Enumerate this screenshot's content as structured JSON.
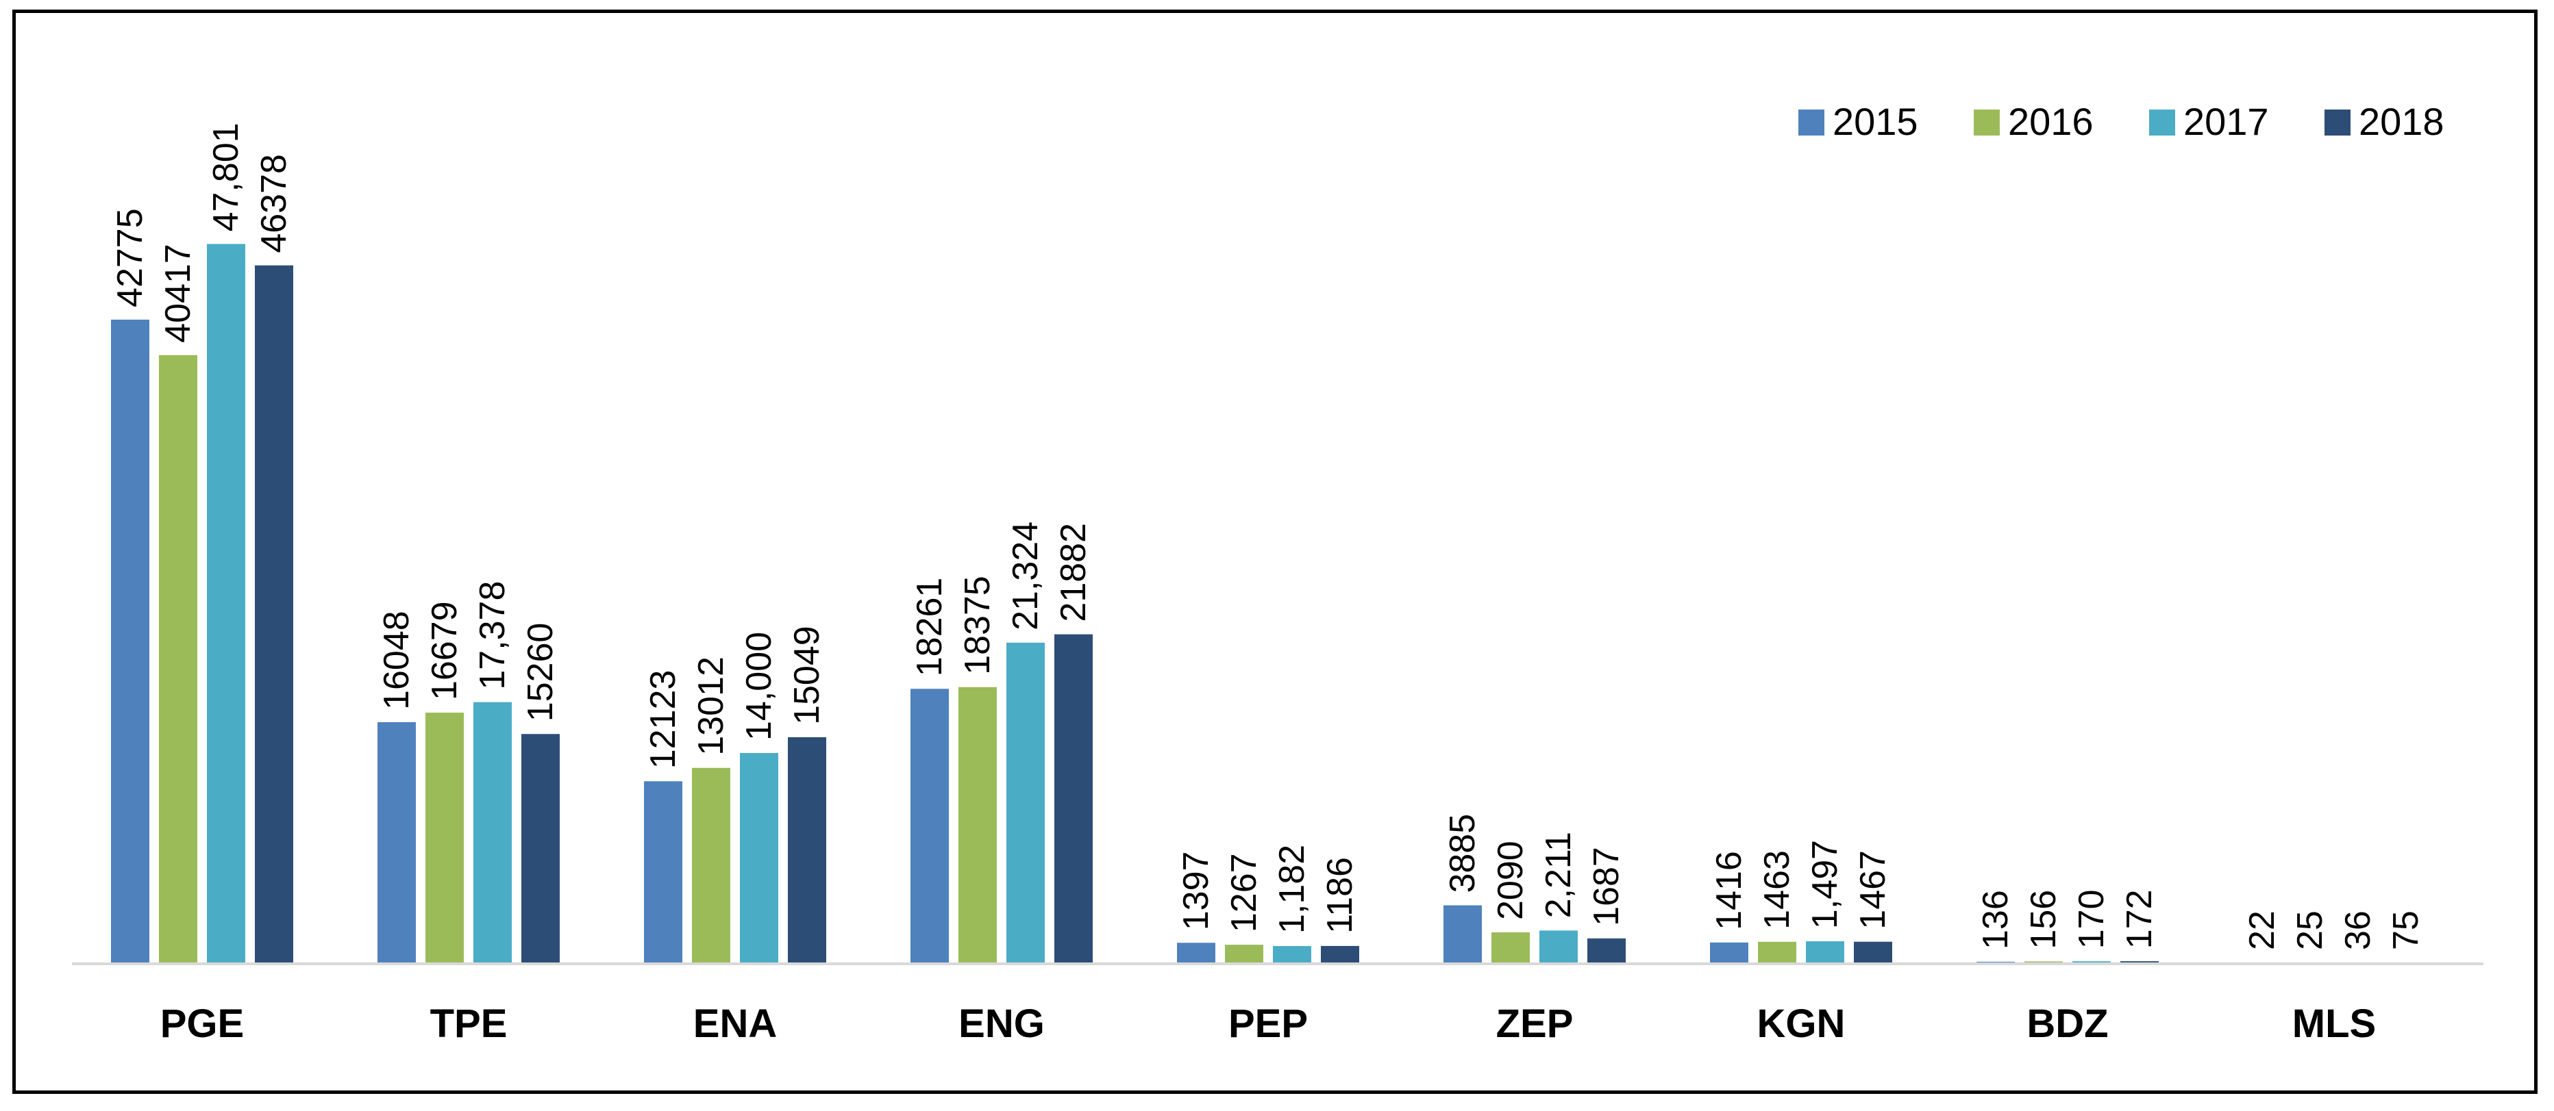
{
  "chart_data": {
    "type": "bar",
    "title": "",
    "xlabel": "",
    "ylabel": "",
    "ylim": [
      0,
      50000
    ],
    "grid": false,
    "legend_position": "top-right",
    "categories": [
      "PGE",
      "TPE",
      "ENA",
      "ENG",
      "PEP",
      "ZEP",
      "KGN",
      "BDZ",
      "MLS"
    ],
    "series": [
      {
        "name": "2015",
        "color": "#4F81BD",
        "values": [
          42775,
          16048,
          12123,
          18261,
          1397,
          3885,
          1416,
          136,
          22
        ],
        "labels": [
          "42775",
          "16048",
          "12123",
          "18261",
          "1397",
          "3885",
          "1416",
          "136",
          "22"
        ]
      },
      {
        "name": "2016",
        "color": "#9BBB59",
        "values": [
          40417,
          16679,
          13012,
          18375,
          1267,
          2090,
          1463,
          156,
          25
        ],
        "labels": [
          "40417",
          "16679",
          "13012",
          "18375",
          "1267",
          "2090",
          "1463",
          "156",
          "25"
        ]
      },
      {
        "name": "2017",
        "color": "#4BACC6",
        "values": [
          47801,
          17378,
          14000,
          21324,
          1182,
          2211,
          1497,
          170,
          36
        ],
        "labels": [
          "47,801",
          "17,378",
          "14,000",
          "21,324",
          "1,182",
          "2,211",
          "1,497",
          "170",
          "36"
        ]
      },
      {
        "name": "2018",
        "color": "#2C4D75",
        "values": [
          46378,
          15260,
          15049,
          21882,
          1186,
          1687,
          1467,
          172,
          75
        ],
        "labels": [
          "46378",
          "15260",
          "15049",
          "21882",
          "1186",
          "1687",
          "1467",
          "172",
          "75"
        ]
      }
    ]
  }
}
